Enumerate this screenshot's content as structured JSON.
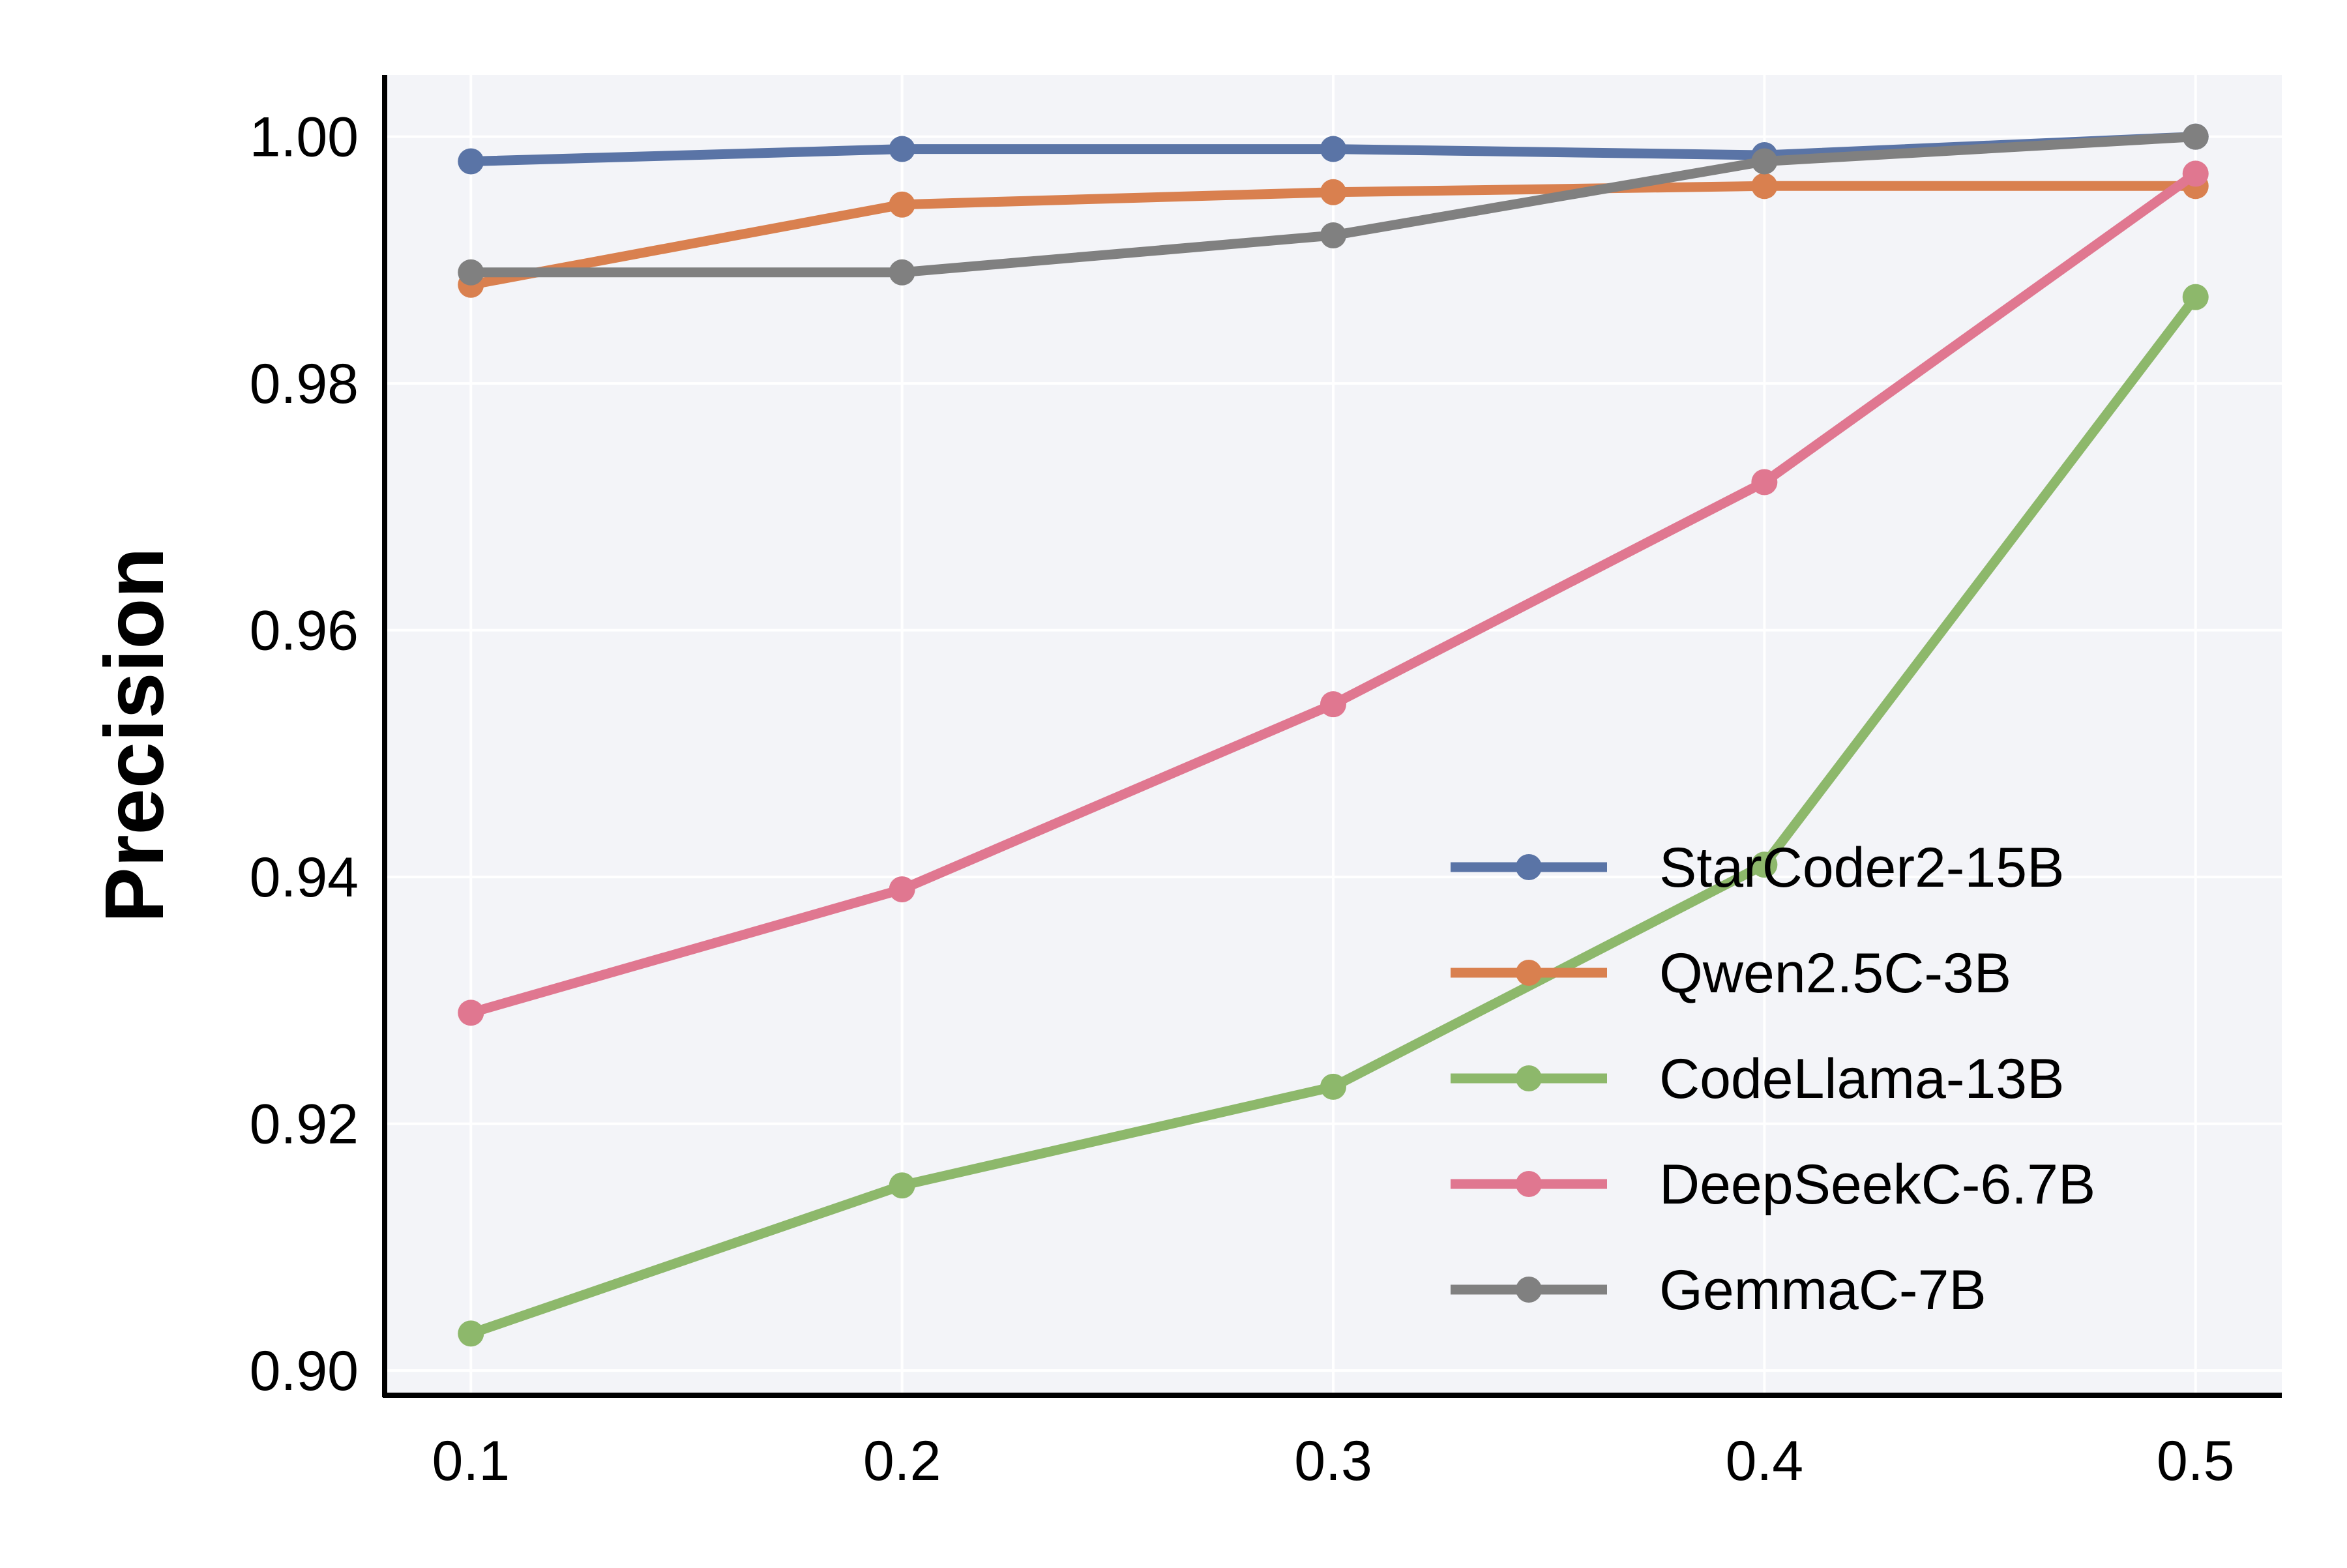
{
  "chart_data": {
    "type": "line",
    "title": "",
    "xlabel": "",
    "ylabel": "Precision",
    "x": [
      0.1,
      0.2,
      0.3,
      0.4,
      0.5
    ],
    "x_tick_labels": [
      "0.1",
      "0.2",
      "0.3",
      "0.4",
      "0.5"
    ],
    "y_ticks": [
      0.9,
      0.92,
      0.94,
      0.96,
      0.98,
      1.0
    ],
    "y_tick_labels": [
      "0.90",
      "0.92",
      "0.94",
      "0.96",
      "0.98",
      "1.00"
    ],
    "xlim": [
      0.08,
      0.52
    ],
    "ylim": [
      0.898,
      1.005
    ],
    "grid": true,
    "legend_position": "lower-right",
    "background_color": "#f3f4f8",
    "series": [
      {
        "name": "StarCoder2-15B",
        "color": "#5a74a6",
        "values": [
          0.998,
          0.999,
          0.999,
          0.9985,
          1.0
        ]
      },
      {
        "name": "Qwen2.5C-3B",
        "color": "#d9804f",
        "values": [
          0.988,
          0.9945,
          0.9955,
          0.996,
          0.996
        ]
      },
      {
        "name": "CodeLlama-13B",
        "color": "#8db86b",
        "values": [
          0.903,
          0.915,
          0.923,
          0.941,
          0.987
        ]
      },
      {
        "name": "DeepSeekC-6.7B",
        "color": "#e07790",
        "values": [
          0.929,
          0.939,
          0.954,
          0.972,
          0.997
        ]
      },
      {
        "name": "GemmaC-7B",
        "color": "#808080",
        "values": [
          0.989,
          0.989,
          0.992,
          0.998,
          1.0
        ]
      }
    ]
  }
}
